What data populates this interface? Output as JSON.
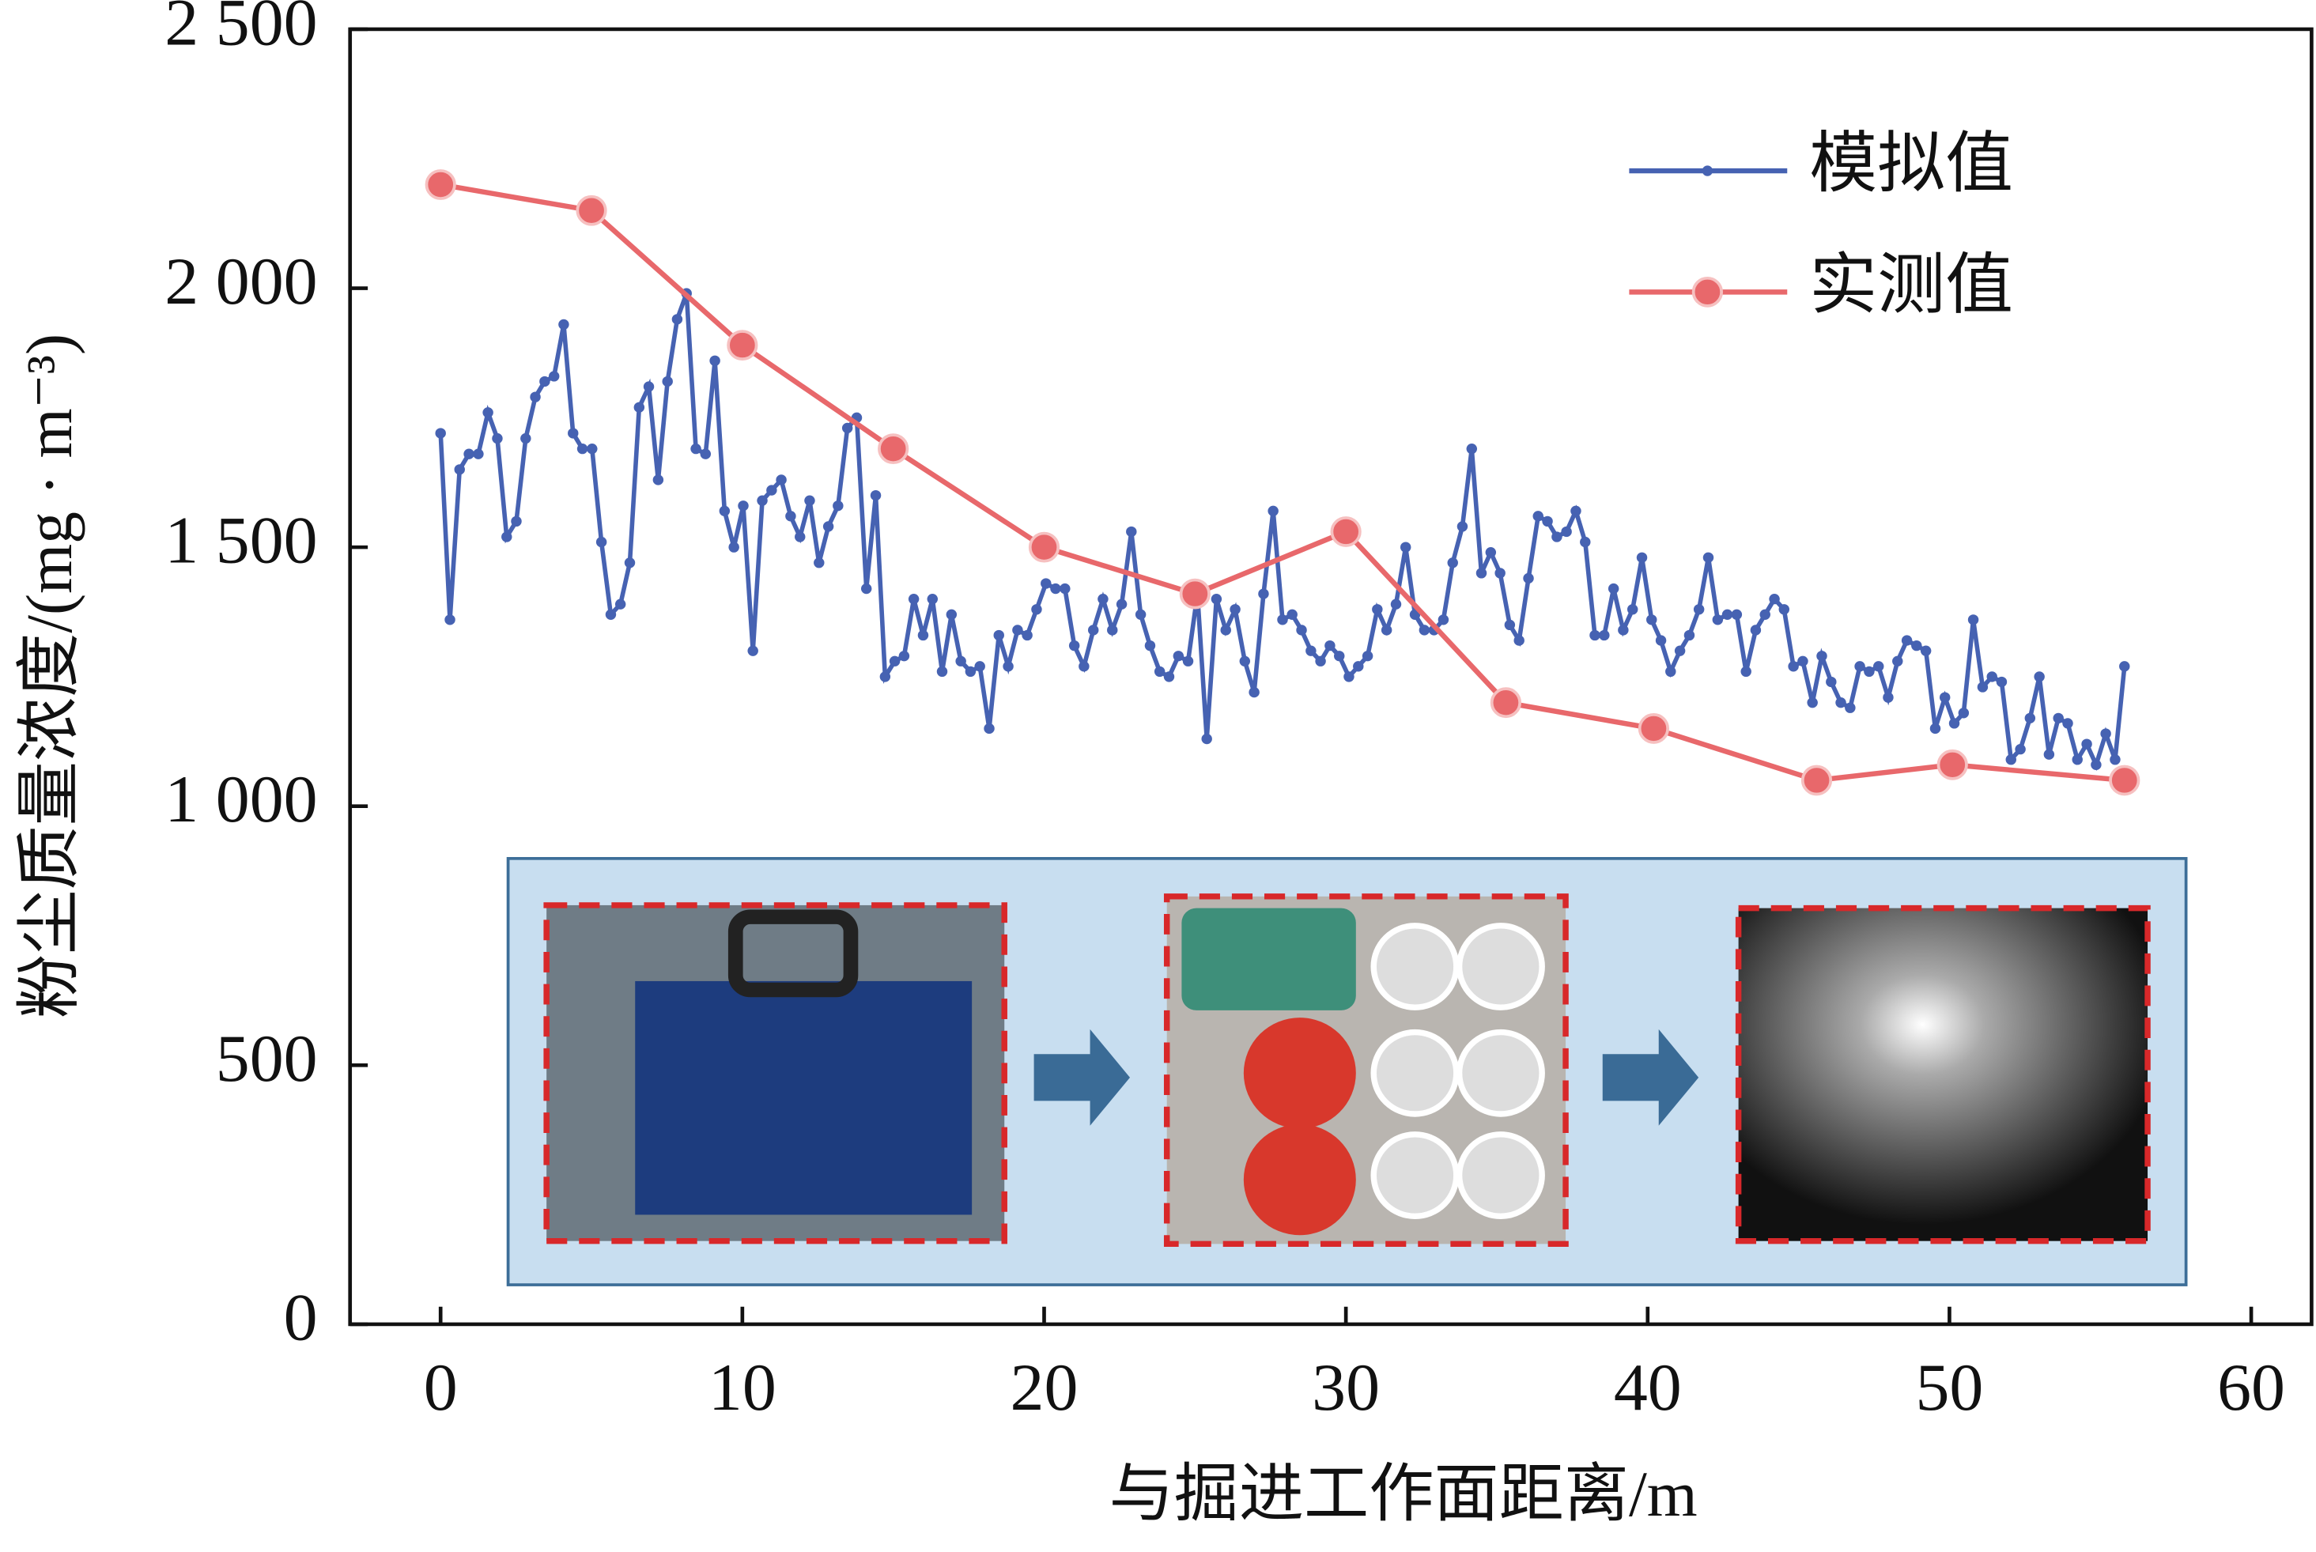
{
  "chart_data": {
    "type": "line",
    "x_label": "与掘进工作面距离/m",
    "y_label": "粉尘质量浓度/(mg · m⁻³)",
    "xlim": [
      -3,
      62
    ],
    "xticks": [
      0,
      10,
      20,
      30,
      40,
      50,
      60
    ],
    "ylim": [
      0,
      2500
    ],
    "yticks": [
      0,
      500,
      {
        "value": 1000,
        "label": "1 000"
      },
      {
        "value": 1500,
        "label": "1 500"
      },
      {
        "value": 2000,
        "label": "2 000"
      },
      {
        "value": 2500,
        "label": "2 500"
      }
    ],
    "grid": false,
    "legend": "upper right",
    "series": [
      {
        "name": "模拟值",
        "color": "#4662b2",
        "marker": "dot",
        "x": [
          0,
          0.31,
          0.63,
          0.94,
          1.25,
          1.57,
          1.88,
          2.19,
          2.51,
          2.82,
          3.14,
          3.45,
          3.76,
          4.08,
          4.39,
          4.7,
          5.02,
          5.33,
          5.64,
          5.96,
          6.27,
          6.58,
          6.9,
          7.21,
          7.52,
          7.84,
          8.15,
          8.46,
          8.78,
          9.09,
          9.41,
          9.72,
          10.03,
          10.35,
          10.66,
          10.97,
          11.29,
          11.6,
          11.91,
          12.23,
          12.54,
          12.85,
          13.17,
          13.48,
          13.79,
          14.11,
          14.42,
          14.73,
          15.05,
          15.36,
          15.68,
          15.99,
          16.3,
          16.62,
          16.93,
          17.24,
          17.56,
          17.87,
          18.18,
          18.5,
          18.81,
          19.12,
          19.44,
          19.75,
          20.06,
          20.38,
          20.69,
          21.0,
          21.32,
          21.63,
          21.95,
          22.26,
          22.57,
          22.89,
          23.2,
          23.51,
          23.83,
          24.14,
          24.45,
          24.77,
          25.08,
          25.39,
          25.71,
          26.02,
          26.33,
          26.65,
          26.96,
          27.27,
          27.59,
          27.9,
          28.22,
          28.53,
          28.84,
          29.16,
          29.47,
          29.78,
          30.1,
          30.41,
          30.72,
          31.04,
          31.35,
          31.66,
          31.98,
          32.29,
          32.6,
          32.92,
          33.23,
          33.54,
          33.86,
          34.17,
          34.49,
          34.8,
          35.11,
          35.43,
          35.74,
          36.05,
          36.37,
          36.68,
          36.99,
          37.31,
          37.62,
          37.93,
          38.25,
          38.56,
          38.87,
          39.19,
          39.5,
          39.81,
          40.13,
          40.44,
          40.76,
          41.07,
          41.38,
          41.7,
          42.01,
          42.32,
          42.64,
          42.95,
          43.26,
          43.58,
          43.89,
          44.2,
          44.52,
          44.83,
          45.14,
          45.46,
          45.77,
          46.08,
          46.4,
          46.71,
          47.03,
          47.34,
          47.65,
          47.97,
          48.28,
          48.59,
          48.91,
          49.22,
          49.53,
          49.85,
          50.16,
          50.47,
          50.79,
          51.1,
          51.41,
          51.73,
          52.04,
          52.35,
          52.67,
          52.98,
          53.3,
          53.61,
          53.92,
          54.24,
          54.55,
          54.86,
          55.18,
          55.49,
          55.8
        ],
        "values": [
          1720,
          1360,
          1650,
          1680,
          1680,
          1760,
          1710,
          1520,
          1550,
          1710,
          1790,
          1820,
          1830,
          1930,
          1720,
          1690,
          1690,
          1510,
          1370,
          1390,
          1470,
          1770,
          1810,
          1630,
          1820,
          1940,
          1990,
          1690,
          1680,
          1860,
          1570,
          1500,
          1580,
          1300,
          1590,
          1610,
          1630,
          1560,
          1520,
          1590,
          1470,
          1540,
          1580,
          1730,
          1750,
          1420,
          1600,
          1250,
          1280,
          1290,
          1400,
          1330,
          1400,
          1260,
          1370,
          1280,
          1260,
          1270,
          1150,
          1330,
          1270,
          1340,
          1330,
          1380,
          1430,
          1420,
          1420,
          1310,
          1270,
          1340,
          1400,
          1340,
          1390,
          1530,
          1370,
          1310,
          1260,
          1250,
          1290,
          1280,
          1410,
          1130,
          1400,
          1340,
          1380,
          1280,
          1220,
          1410,
          1570,
          1360,
          1370,
          1340,
          1300,
          1280,
          1310,
          1290,
          1250,
          1270,
          1290,
          1380,
          1340,
          1390,
          1500,
          1370,
          1340,
          1340,
          1360,
          1470,
          1540,
          1690,
          1450,
          1490,
          1450,
          1350,
          1320,
          1440,
          1560,
          1550,
          1520,
          1530,
          1570,
          1510,
          1330,
          1330,
          1420,
          1340,
          1380,
          1480,
          1360,
          1320,
          1260,
          1300,
          1330,
          1380,
          1480,
          1360,
          1370,
          1370,
          1260,
          1340,
          1370,
          1400,
          1380,
          1270,
          1280,
          1200,
          1290,
          1240,
          1200,
          1190,
          1270,
          1260,
          1270,
          1210,
          1280,
          1320,
          1310,
          1300,
          1150,
          1210,
          1160,
          1180,
          1360,
          1230,
          1250,
          1240,
          1090,
          1110,
          1170,
          1250,
          1100,
          1170,
          1160,
          1090,
          1120,
          1080,
          1140,
          1090,
          1270
        ]
      },
      {
        "name": "实测值",
        "color": "#e8686b",
        "marker": "ball",
        "x": [
          0,
          5,
          10,
          15,
          20,
          25,
          30,
          35.3,
          40.2,
          45.6,
          50.1,
          55.8
        ],
        "values": [
          2200,
          2150,
          1890,
          1690,
          1500,
          1410,
          1530,
          1200,
          1150,
          1050,
          1080,
          1050
        ]
      }
    ]
  }
}
